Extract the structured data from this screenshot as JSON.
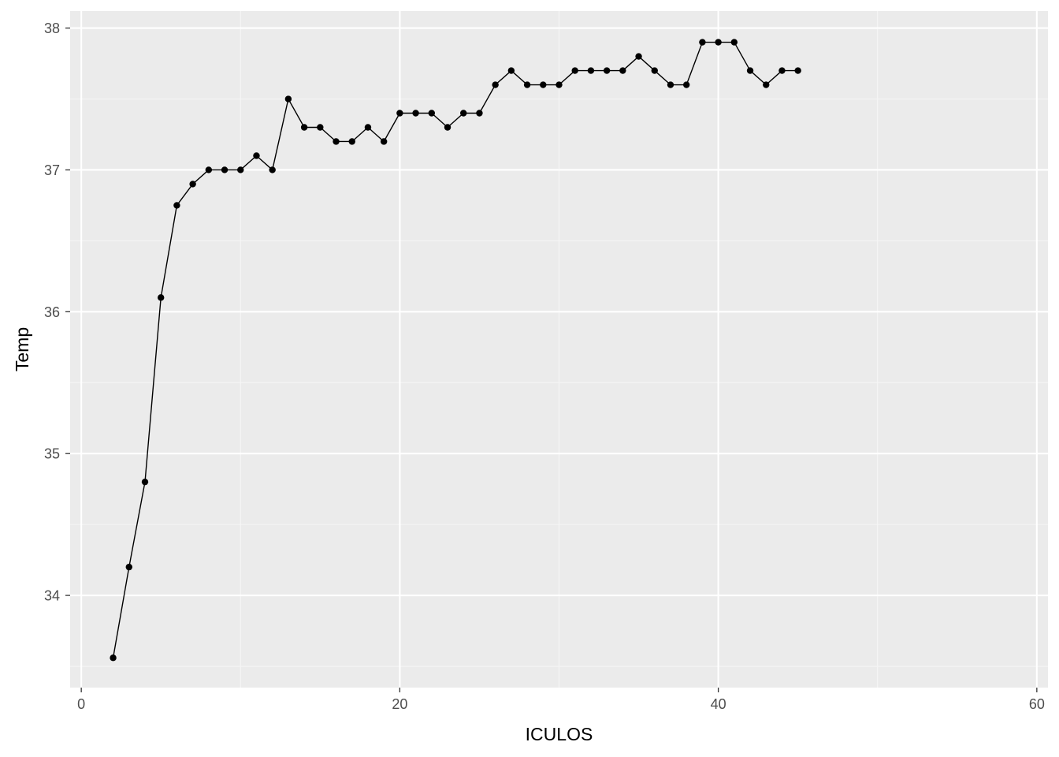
{
  "chart_data": {
    "type": "line",
    "xlabel": "ICULOS",
    "ylabel": "Temp",
    "xlim": [
      -0.7,
      60.7
    ],
    "ylim": [
      33.35,
      38.12
    ],
    "x_ticks": [
      0,
      20,
      40,
      60
    ],
    "x_minor_ticks": [
      10,
      30,
      50
    ],
    "y_ticks": [
      34,
      35,
      36,
      37,
      38
    ],
    "y_minor_ticks": [
      33.5,
      34.5,
      35.5,
      36.5,
      37.5
    ],
    "grid": true,
    "markers": true,
    "series": [
      {
        "x": [
          2,
          3,
          4,
          5,
          6,
          7,
          8,
          9,
          10,
          11,
          12,
          13,
          14,
          15,
          16,
          17,
          18,
          19,
          20,
          21,
          22,
          23,
          24,
          25,
          26,
          27,
          28,
          29,
          30,
          31,
          32,
          33,
          34,
          35,
          36,
          37,
          38,
          39,
          40,
          41,
          42,
          43,
          44,
          45
        ],
        "values": [
          33.56,
          34.2,
          34.8,
          36.1,
          36.75,
          36.9,
          37.0,
          37.0,
          37.0,
          37.1,
          37.0,
          37.5,
          37.3,
          37.3,
          37.2,
          37.2,
          37.3,
          37.2,
          37.4,
          37.4,
          37.4,
          37.3,
          37.4,
          37.4,
          37.6,
          37.7,
          37.6,
          37.6,
          37.6,
          37.7,
          37.7,
          37.7,
          37.7,
          37.8,
          37.7,
          37.6,
          37.6,
          37.9,
          37.9,
          37.9,
          37.7,
          37.6,
          37.7,
          37.7
        ]
      }
    ]
  },
  "colors": {
    "panel_background": "#ebebeb",
    "grid_major": "#ffffff",
    "grid_minor": "#f5f5f5",
    "line": "#000000",
    "point": "#000000",
    "tick_label": "#4d4d4d",
    "tick_mark": "#333333"
  }
}
